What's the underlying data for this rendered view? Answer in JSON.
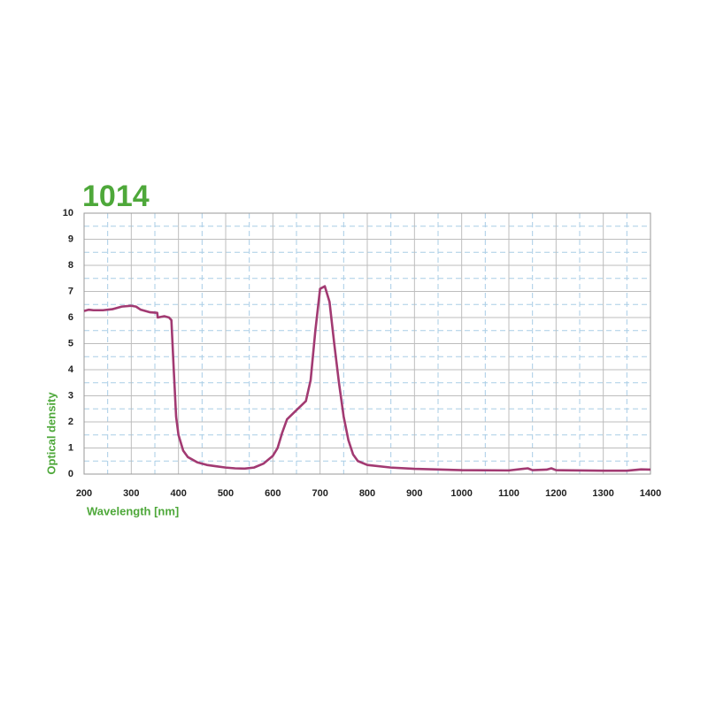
{
  "chart_data": {
    "type": "line",
    "title": "1014",
    "x_label": "Wavelength [nm]",
    "y_label": "Optical density",
    "xlim": [
      200,
      1400
    ],
    "ylim": [
      0,
      10
    ],
    "xticks": [
      200,
      300,
      400,
      500,
      600,
      700,
      800,
      900,
      1000,
      1100,
      1200,
      1300,
      1400
    ],
    "yticks": [
      0,
      1,
      2,
      3,
      4,
      5,
      6,
      7,
      8,
      9,
      10
    ],
    "xminorticks": [
      250,
      350,
      450,
      550,
      650,
      750,
      850,
      950,
      1050,
      1150,
      1250,
      1350
    ],
    "yminorticks": [
      0.5,
      1.5,
      2.5,
      3.5,
      4.5,
      5.5,
      6.5,
      7.5,
      8.5,
      9.5
    ],
    "grid": true,
    "series": [
      {
        "name": "1014",
        "color": "#a23a72",
        "x": [
          200,
          210,
          220,
          240,
          260,
          280,
          300,
          310,
          320,
          340,
          355,
          356,
          370,
          380,
          385,
          390,
          395,
          400,
          410,
          420,
          440,
          460,
          480,
          500,
          520,
          540,
          560,
          580,
          600,
          610,
          620,
          630,
          650,
          670,
          680,
          690,
          700,
          710,
          720,
          730,
          740,
          750,
          760,
          770,
          780,
          800,
          850,
          900,
          1000,
          1100,
          1130,
          1140,
          1150,
          1180,
          1190,
          1200,
          1300,
          1350,
          1380,
          1400
        ],
        "values": [
          6.25,
          6.3,
          6.28,
          6.28,
          6.32,
          6.42,
          6.45,
          6.42,
          6.3,
          6.2,
          6.18,
          6.0,
          6.05,
          6.0,
          5.9,
          4.0,
          2.2,
          1.5,
          0.9,
          0.65,
          0.45,
          0.35,
          0.3,
          0.25,
          0.22,
          0.21,
          0.25,
          0.4,
          0.7,
          1.0,
          1.6,
          2.1,
          2.45,
          2.8,
          3.6,
          5.5,
          7.1,
          7.2,
          6.6,
          5.0,
          3.5,
          2.2,
          1.3,
          0.75,
          0.5,
          0.35,
          0.25,
          0.2,
          0.15,
          0.14,
          0.2,
          0.22,
          0.15,
          0.17,
          0.22,
          0.15,
          0.13,
          0.13,
          0.18,
          0.17
        ]
      }
    ]
  }
}
